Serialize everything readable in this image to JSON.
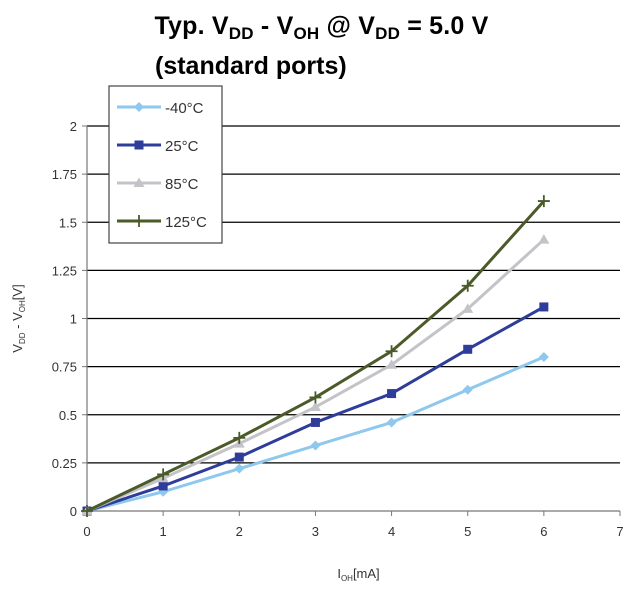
{
  "chart_data": {
    "type": "line",
    "title": {
      "prefix": "Typ. V",
      "sub1": "DD",
      "mid1": " - V",
      "sub2": "OH",
      "mid2": " @ V",
      "sub3": "DD",
      "suffix": " = 5.0 V",
      "line2": "(standard ports)"
    },
    "xlabel": {
      "main": "I",
      "sub": "OH",
      "unit": "[mA]"
    },
    "ylabel": {
      "main1": "V",
      "sub1": "DD",
      "mid": " - V",
      "sub2": "OH",
      "unit": "[V]"
    },
    "xlim": [
      0,
      7
    ],
    "ylim": [
      0,
      2
    ],
    "x_ticks": [
      "0",
      "1",
      "2",
      "3",
      "4",
      "5",
      "6",
      "7"
    ],
    "y_ticks": [
      "0",
      "0.25",
      "0.5",
      "0.75",
      "1",
      "1.25",
      "1.5",
      "1.75",
      "2"
    ],
    "grid": "horizontal",
    "legend_position": "top-left",
    "x": [
      0,
      1,
      2,
      3,
      4,
      5,
      6
    ],
    "series": [
      {
        "name": "-40°C",
        "color": "#8ec8ee",
        "marker": "diamond",
        "values": [
          0,
          0.1,
          0.22,
          0.34,
          0.46,
          0.63,
          0.8
        ]
      },
      {
        "name": "25°C",
        "color": "#2e3d9a",
        "marker": "square",
        "values": [
          0,
          0.13,
          0.28,
          0.46,
          0.61,
          0.84,
          1.06
        ]
      },
      {
        "name": "85°C",
        "color": "#c4c4c8",
        "marker": "triangle",
        "values": [
          0,
          0.17,
          0.35,
          0.54,
          0.76,
          1.05,
          1.41
        ]
      },
      {
        "name": "125°C",
        "color": "#4a5a28",
        "marker": "plus",
        "values": [
          0,
          0.19,
          0.38,
          0.59,
          0.83,
          1.17,
          1.61
        ]
      }
    ]
  }
}
